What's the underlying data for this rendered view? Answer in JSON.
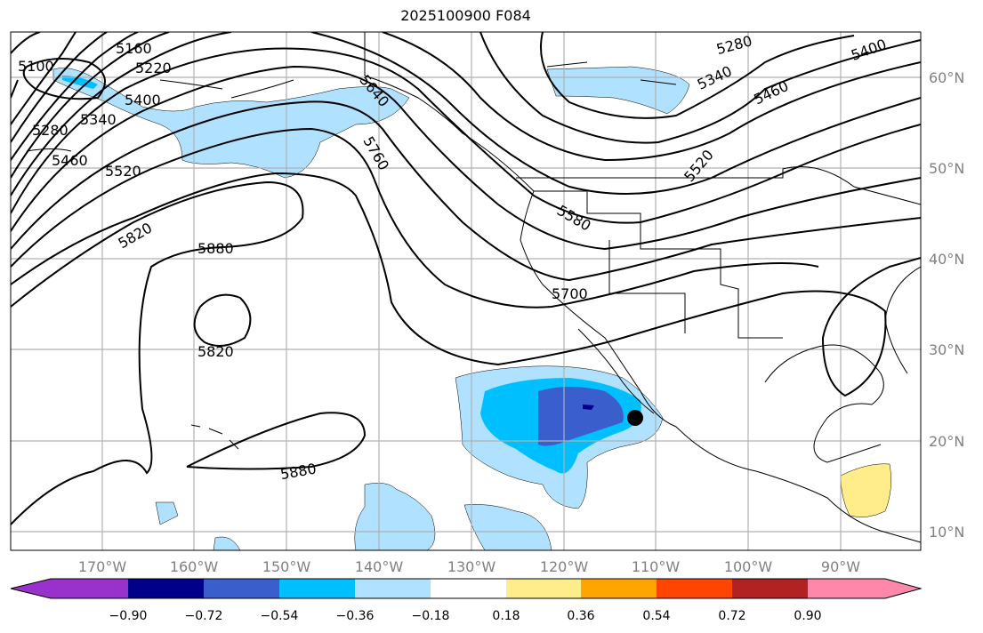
{
  "title": "2025100900 F084",
  "lon_labels": [
    "170°W",
    "160°W",
    "150°W",
    "140°W",
    "130°W",
    "120°W",
    "110°W",
    "100°W",
    "90°W"
  ],
  "lat_labels": [
    "60°N",
    "50°N",
    "40°N",
    "30°N",
    "20°N",
    "10°N"
  ],
  "contour_labels": [
    "5100",
    "5160",
    "5220",
    "5280",
    "5340",
    "5400",
    "5460",
    "5520",
    "5580",
    "5640",
    "5700",
    "5760",
    "5820",
    "5880",
    "5820",
    "5880",
    "5280",
    "5340",
    "5400",
    "5460",
    "5520"
  ],
  "colorbar": {
    "ticks": [
      "−0.90",
      "−0.72",
      "−0.54",
      "−0.36",
      "−0.18",
      "0.18",
      "0.36",
      "0.54",
      "0.72",
      "0.90"
    ],
    "colors": [
      "#9932cc",
      "#00008b",
      "#3a5fcd",
      "#00bfff",
      "#b0e2ff",
      "#ffffff",
      "#ffec8b",
      "#ffa500",
      "#ff4500",
      "#b22222",
      "#ff88aa"
    ]
  },
  "marker": "storm-center-marker"
}
